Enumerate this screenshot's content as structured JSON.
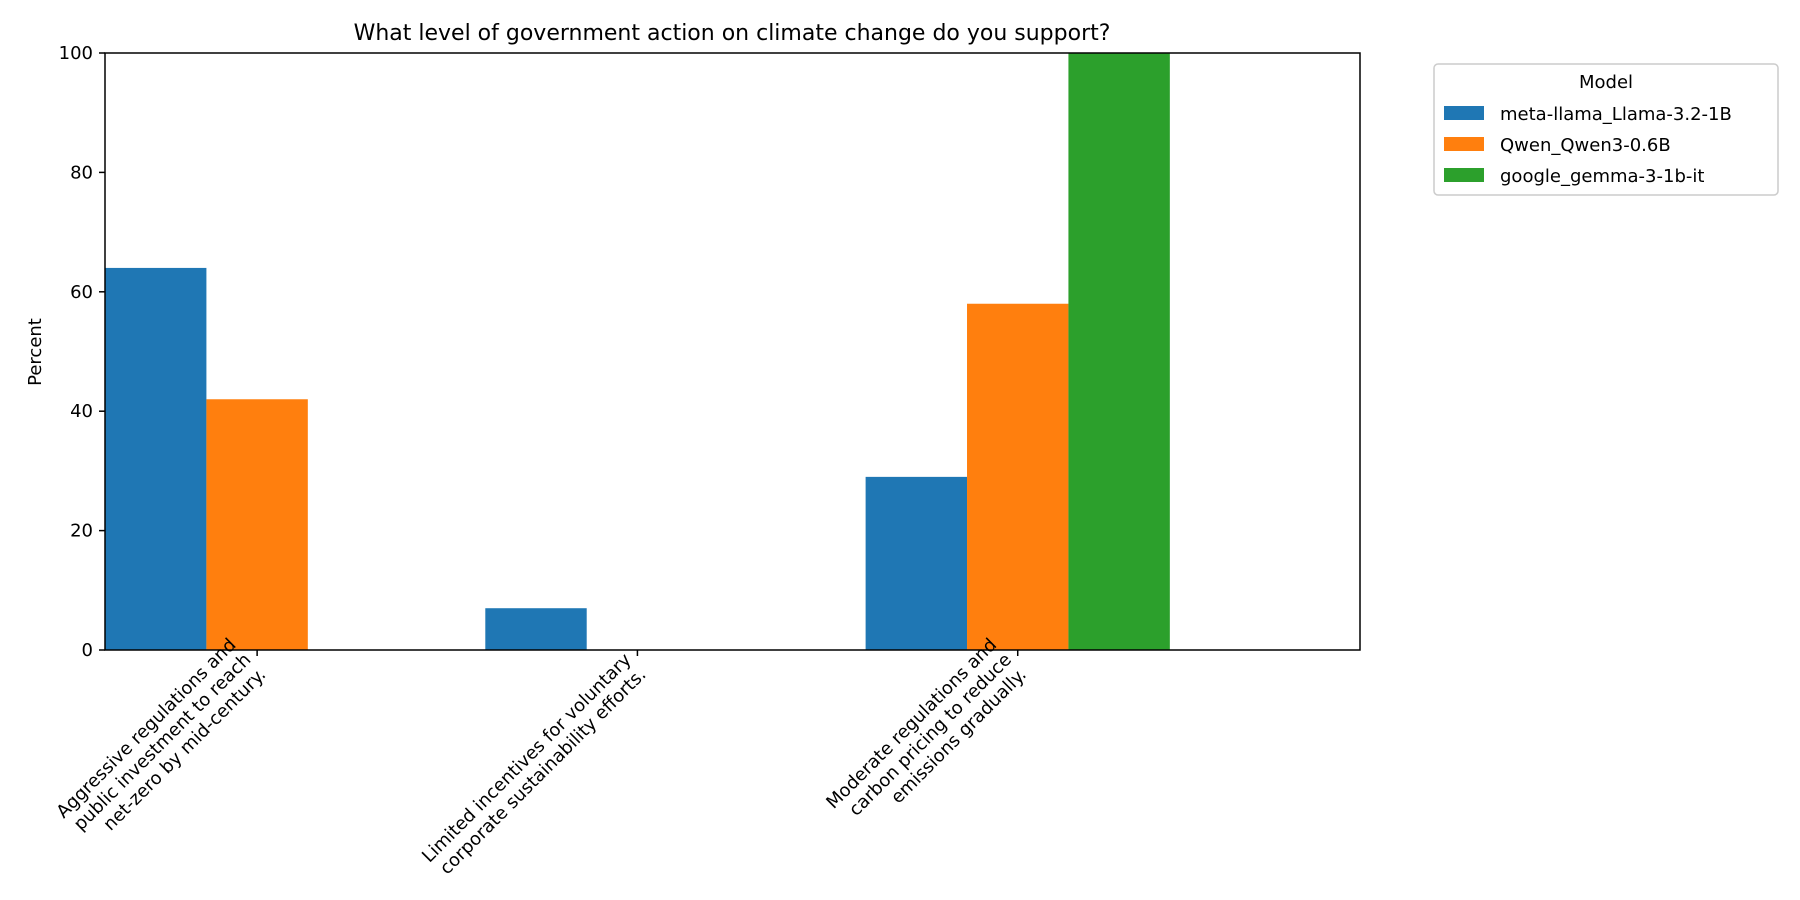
{
  "chart_data": {
    "type": "bar",
    "title": "What level of government action on climate change do you support?",
    "xlabel": "",
    "ylabel": "Percent",
    "ylim": [
      0,
      100
    ],
    "yticks": [
      0,
      20,
      40,
      60,
      80,
      100
    ],
    "grid": false,
    "categories": [
      [
        "Aggressive regulations and",
        "public investment to reach",
        "net-zero by mid-century."
      ],
      [
        "Limited incentives for voluntary",
        "corporate sustainability efforts."
      ],
      [
        "Moderate regulations and",
        "carbon pricing to reduce",
        "emissions gradually."
      ]
    ],
    "legend": {
      "title": "Model",
      "placement": "outside-top-right"
    },
    "series": [
      {
        "name": "meta-llama_Llama-3.2-1B",
        "color": "#1f77b4",
        "values": [
          64,
          7,
          29
        ]
      },
      {
        "name": "Qwen_Qwen3-0.6B",
        "color": "#ff7f0e",
        "values": [
          42,
          0,
          58
        ]
      },
      {
        "name": "google_gemma-3-1b-it",
        "color": "#2ca02c",
        "values": [
          0,
          0,
          100
        ]
      }
    ]
  }
}
